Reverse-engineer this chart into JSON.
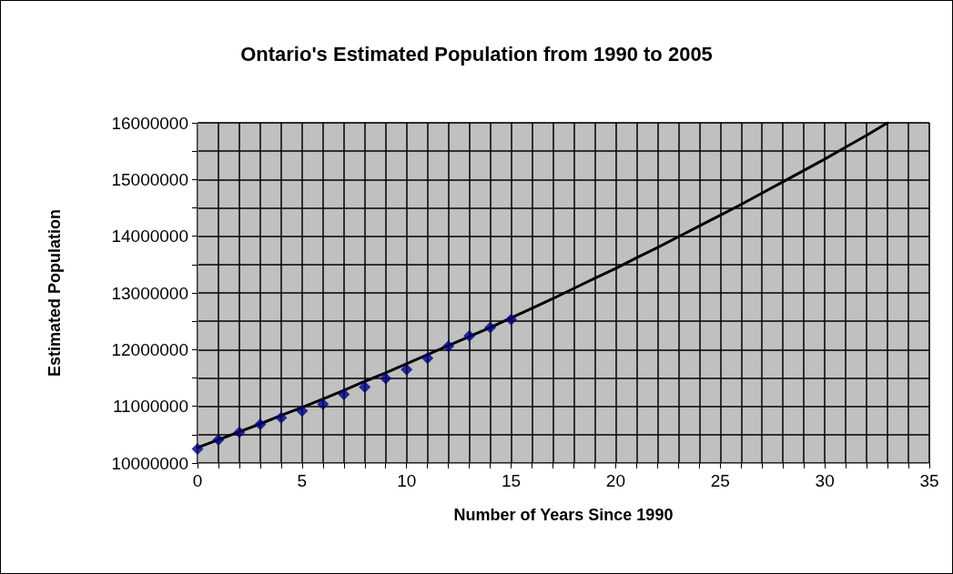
{
  "chart_data": {
    "type": "scatter",
    "title": "Ontario's Estimated Population from 1990 to 2005",
    "xlabel": "Number of Years Since 1990",
    "ylabel": "Estimated Population",
    "xlim": [
      0,
      35
    ],
    "xticks": [
      0,
      {
        "value": 1,
        "label": null
      },
      {
        "value": 2,
        "label": null
      },
      {
        "value": 3,
        "label": null
      },
      {
        "value": 4,
        "label": null
      },
      5,
      {
        "value": 6,
        "label": null
      },
      {
        "value": 7,
        "label": null
      },
      {
        "value": 8,
        "label": null
      },
      {
        "value": 9,
        "label": null
      },
      10,
      {
        "value": 11,
        "label": null
      },
      {
        "value": 12,
        "label": null
      },
      {
        "value": 13,
        "label": null
      },
      {
        "value": 14,
        "label": null
      },
      15,
      {
        "value": 16,
        "label": null
      },
      {
        "value": 17,
        "label": null
      },
      {
        "value": 18,
        "label": null
      },
      {
        "value": 19,
        "label": null
      },
      20,
      {
        "value": 21,
        "label": null
      },
      {
        "value": 22,
        "label": null
      },
      {
        "value": 23,
        "label": null
      },
      {
        "value": 24,
        "label": null
      },
      25,
      {
        "value": 26,
        "label": null
      },
      {
        "value": 27,
        "label": null
      },
      {
        "value": 28,
        "label": null
      },
      {
        "value": 29,
        "label": null
      },
      30,
      {
        "value": 31,
        "label": null
      },
      {
        "value": 32,
        "label": null
      },
      {
        "value": 33,
        "label": null
      },
      {
        "value": 34,
        "label": null
      },
      35
    ],
    "ylim": [
      10000000,
      16000000
    ],
    "yticks": [
      10000000,
      {
        "value": 10500000,
        "label": null
      },
      11000000,
      {
        "value": 11500000,
        "label": null
      },
      12000000,
      {
        "value": 12500000,
        "label": null
      },
      13000000,
      {
        "value": 13500000,
        "label": null
      },
      14000000,
      {
        "value": 14500000,
        "label": null
      },
      15000000,
      {
        "value": 15500000,
        "label": null
      },
      16000000
    ],
    "grid": true,
    "series": [
      {
        "marker": "diamond",
        "color": "#000080",
        "x": [
          0,
          1,
          2,
          3,
          4,
          5,
          6,
          7,
          8,
          9,
          10,
          11,
          12,
          13,
          14,
          15
        ],
        "values": [
          10250000,
          10410000,
          10540000,
          10680000,
          10800000,
          10920000,
          11040000,
          11210000,
          11340000,
          11490000,
          11650000,
          11850000,
          12060000,
          12240000,
          12390000,
          12530000
        ]
      },
      {
        "type": "line",
        "marker": "none",
        "line_style": "solid",
        "color": "#000000",
        "x": [
          0,
          1,
          2,
          3,
          4,
          5,
          6,
          7,
          8,
          9,
          10,
          11,
          12,
          13,
          14,
          15,
          16,
          17,
          18,
          19,
          20,
          21,
          22,
          23,
          24,
          25,
          26,
          27,
          28,
          29,
          30,
          31,
          32,
          33
        ],
        "values": [
          10270000,
          10410000,
          10550000,
          10690000,
          10840000,
          10980000,
          11130000,
          11280000,
          11440000,
          11590000,
          11750000,
          11910000,
          12070000,
          12230000,
          12390000,
          12560000,
          12730000,
          12900000,
          13080000,
          13260000,
          13430000,
          13620000,
          13800000,
          13990000,
          14180000,
          14370000,
          14560000,
          14760000,
          14960000,
          15160000,
          15360000,
          15570000,
          15780000,
          16000000
        ]
      }
    ]
  }
}
